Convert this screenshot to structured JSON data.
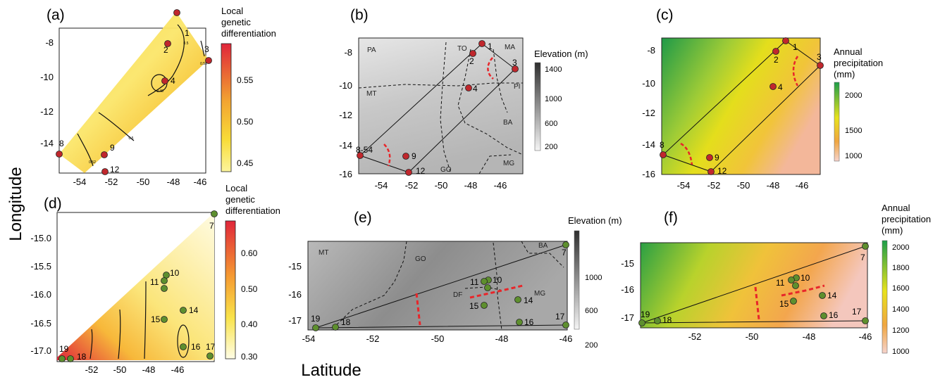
{
  "axis": {
    "ylabel": "Longitude",
    "xlabel": "Latitude"
  },
  "panels": {
    "a": {
      "letter": "(a)",
      "legend_title": [
        "Local",
        "genetic",
        "differentiation"
      ],
      "legend_ticks": [
        "0.55",
        "0.50",
        "0.45"
      ],
      "y_ticks": [
        "-8",
        "-10",
        "-12",
        "-14"
      ],
      "x_ticks": [
        "-54",
        "-52",
        "-50",
        "-48",
        "-46"
      ],
      "points": [
        "1",
        "2",
        "3",
        "4",
        "8",
        "9",
        "12"
      ],
      "contour_labels": [
        "0.48",
        "0.5",
        "0.52",
        "0.5",
        "0.52"
      ]
    },
    "b": {
      "letter": "(b)",
      "legend_title": "Elevation (m)",
      "legend_ticks": [
        "1400",
        "1000",
        "600",
        "200"
      ],
      "y_ticks": [
        "-8",
        "-10",
        "-12",
        "-14",
        "-16"
      ],
      "x_ticks": [
        "-54",
        "-52",
        "-50",
        "-48",
        "-46"
      ],
      "points": [
        "1",
        "2",
        "3",
        "4",
        "8",
        "9",
        "12"
      ],
      "point8_text": "8-54",
      "regions": [
        "PA",
        "TO",
        "MA",
        "MT",
        "PI",
        "BA",
        "GO",
        "MG"
      ]
    },
    "c": {
      "letter": "(c)",
      "legend_title": [
        "Annual",
        "precipitation",
        "(mm)"
      ],
      "legend_ticks": [
        "2000",
        "1500",
        "1000"
      ],
      "y_ticks": [
        "-8",
        "-10",
        "-12",
        "-14",
        "-16"
      ],
      "x_ticks": [
        "-54",
        "-52",
        "-50",
        "-48",
        "-46"
      ],
      "points": [
        "1",
        "2",
        "3",
        "4",
        "8",
        "9",
        "12"
      ]
    },
    "d": {
      "letter": "(d)",
      "legend_title": [
        "Local",
        "genetic",
        "differentiation"
      ],
      "legend_ticks": [
        "0.60",
        "0.50",
        "0.40",
        "0.30"
      ],
      "y_ticks": [
        "-15.0",
        "-15.5",
        "-16.0",
        "-16.5",
        "-17.0"
      ],
      "x_ticks": [
        "-52",
        "-50",
        "-48",
        "-46"
      ],
      "points": [
        "7",
        "10",
        "11",
        "14",
        "15",
        "16",
        "17",
        "18",
        "19"
      ]
    },
    "e": {
      "letter": "(e)",
      "legend_title": "Elevation (m)",
      "legend_ticks": [
        "1000",
        "600",
        "200"
      ],
      "y_ticks": [
        "-15",
        "-16",
        "-17"
      ],
      "x_ticks": [
        "-54",
        "-52",
        "-50",
        "-48",
        "-46"
      ],
      "points": [
        "7",
        "10",
        "11",
        "14",
        "15",
        "16",
        "17",
        "18",
        "19"
      ],
      "regions": [
        "MT",
        "GO",
        "BA",
        "DF",
        "MG"
      ]
    },
    "f": {
      "letter": "(f)",
      "legend_title": [
        "Annual",
        "precipitation",
        "(mm)"
      ],
      "legend_ticks": [
        "2000",
        "1800",
        "1600",
        "1400",
        "1200",
        "1000"
      ],
      "y_ticks": [
        "-15",
        "-16",
        "-17"
      ],
      "x_ticks": [
        "-52",
        "-50",
        "-48",
        "-46"
      ],
      "points": [
        "7",
        "10",
        "11",
        "14",
        "15",
        "16",
        "17",
        "18",
        "19"
      ]
    }
  },
  "colors": {
    "red_point": "#c0272d",
    "green_point": "#5e8f2e",
    "barrier": "#e8262a",
    "diff_high": "#e0263a",
    "diff_mid": "#f4c01a",
    "diff_low": "#fffde0",
    "precip_high": "#1e9e4a",
    "precip_mid": "#e8e21c",
    "precip_low": "#f3c9c4"
  }
}
